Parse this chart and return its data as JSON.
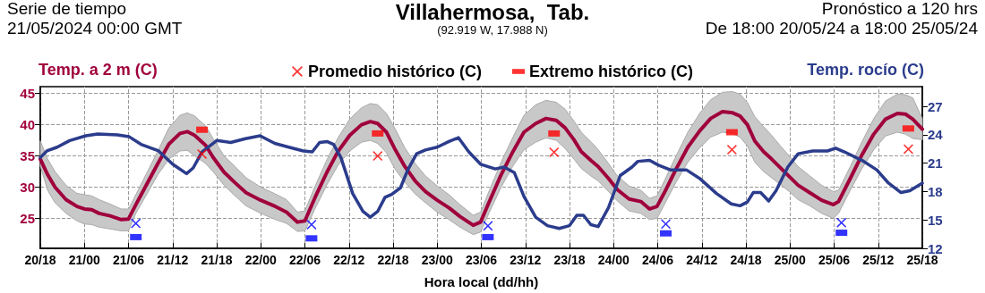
{
  "chart_data": {
    "type": "line",
    "title": "Villahermosa,  Tab.",
    "subtitle": "(92.919 W, 17.988 N)",
    "annotations": [
      "Serie de tiempo",
      "21/05/2024 00:00 GMT",
      "Pronóstico a 120 hrs",
      "De 18:00 20/05/24 a 18:00 25/05/24"
    ],
    "xlabel": "Hora local (dd/hh)",
    "ylabel": "Temp. a 2 m (C)",
    "y2label": "Temp. rocío (C)",
    "xlim": [
      "2024-05-20T18:00",
      "2024-05-25T18:00"
    ],
    "xticks": [
      {
        "value": "2024-05-20T18:00",
        "label": "20/18"
      },
      {
        "value": "2024-05-21T00:00",
        "label": "21/00"
      },
      {
        "value": "2024-05-21T06:00",
        "label": "21/06"
      },
      {
        "value": "2024-05-21T12:00",
        "label": "21/12"
      },
      {
        "value": "2024-05-21T18:00",
        "label": "21/18"
      },
      {
        "value": "2024-05-22T00:00",
        "label": "22/00"
      },
      {
        "value": "2024-05-22T06:00",
        "label": "22/06"
      },
      {
        "value": "2024-05-22T12:00",
        "label": "22/12"
      },
      {
        "value": "2024-05-22T18:00",
        "label": "22/18"
      },
      {
        "value": "2024-05-23T00:00",
        "label": "23/00"
      },
      {
        "value": "2024-05-23T06:00",
        "label": "23/06"
      },
      {
        "value": "2024-05-23T12:00",
        "label": "23/12"
      },
      {
        "value": "2024-05-23T18:00",
        "label": "23/18"
      },
      {
        "value": "2024-05-24T00:00",
        "label": "24/00"
      },
      {
        "value": "2024-05-24T06:00",
        "label": "24/06"
      },
      {
        "value": "2024-05-24T12:00",
        "label": "24/12"
      },
      {
        "value": "2024-05-24T18:00",
        "label": "24/18"
      },
      {
        "value": "2024-05-25T00:00",
        "label": "25/00"
      },
      {
        "value": "2024-05-25T06:00",
        "label": "25/06"
      },
      {
        "value": "2024-05-25T12:00",
        "label": "25/12"
      },
      {
        "value": "2024-05-25T18:00",
        "label": "25/18"
      }
    ],
    "ylim": [
      20.2,
      46.1
    ],
    "yticks": [
      25,
      30,
      35,
      40,
      45
    ],
    "y2lim": [
      12,
      29.1
    ],
    "y2ticks": [
      12,
      15,
      18,
      21,
      24,
      27
    ],
    "grid": true,
    "legend": "top",
    "series": [
      {
        "color": "#a0003c",
        "marker": "none",
        "line_style": "solid",
        "x": [
          "2024-05-20T18:00",
          "2024-05-20T19:00",
          "2024-05-20T20:00",
          "2024-05-20T21:30",
          "2024-05-20T23:00",
          "2024-05-21T00:00",
          "2024-05-21T01:00",
          "2024-05-21T02:00",
          "2024-05-21T03:30",
          "2024-05-21T05:00",
          "2024-05-21T06:00",
          "2024-05-21T07:00",
          "2024-05-21T08:30",
          "2024-05-21T10:00",
          "2024-05-21T11:30",
          "2024-05-21T13:00",
          "2024-05-21T14:00",
          "2024-05-21T15:00",
          "2024-05-21T16:30",
          "2024-05-21T17:30",
          "2024-05-21T19:00",
          "2024-05-21T20:30",
          "2024-05-21T22:00",
          "2024-05-22T00:00",
          "2024-05-22T02:00",
          "2024-05-22T03:30",
          "2024-05-22T05:00",
          "2024-05-22T06:00",
          "2024-05-22T07:24",
          "2024-05-22T09:00",
          "2024-05-22T10:30",
          "2024-05-22T12:06",
          "2024-05-22T13:42",
          "2024-05-22T14:54",
          "2024-05-22T15:54",
          "2024-05-22T17:06",
          "2024-05-22T18:12",
          "2024-05-22T19:36",
          "2024-05-22T21:00",
          "2024-05-22T22:24",
          "2024-05-23T00:00",
          "2024-05-23T01:36",
          "2024-05-23T03:06",
          "2024-05-23T04:54",
          "2024-05-23T05:54",
          "2024-05-23T07:06",
          "2024-05-23T08:42",
          "2024-05-23T10:18",
          "2024-05-23T11:48",
          "2024-05-23T13:24",
          "2024-05-23T14:48",
          "2024-05-23T16:12",
          "2024-05-23T17:24",
          "2024-05-23T18:36",
          "2024-05-23T19:36",
          "2024-05-23T20:54",
          "2024-05-23T21:54",
          "2024-05-23T23:18",
          "2024-05-24T00:30",
          "2024-05-24T02:06",
          "2024-05-24T03:42",
          "2024-05-24T04:54",
          "2024-05-24T05:54",
          "2024-05-24T06:54",
          "2024-05-24T08:30",
          "2024-05-24T10:06",
          "2024-05-24T11:42",
          "2024-05-24T13:12",
          "2024-05-24T14:48",
          "2024-05-24T16:12",
          "2024-05-24T17:12",
          "2024-05-24T18:12",
          "2024-05-24T19:12",
          "2024-05-24T20:24",
          "2024-05-24T21:30",
          "2024-05-24T22:42",
          "2024-05-24T23:54",
          "2024-05-25T01:06",
          "2024-05-25T02:42",
          "2024-05-25T04:18",
          "2024-05-25T05:54",
          "2024-05-25T06:36",
          "2024-05-25T08:12",
          "2024-05-25T09:48",
          "2024-05-25T11:24",
          "2024-05-25T13:00",
          "2024-05-25T14:36",
          "2024-05-25T15:42",
          "2024-05-25T16:42",
          "2024-05-25T18:00"
        ],
        "values": [
          34.5,
          32,
          30,
          28,
          26.9,
          26.5,
          26.4,
          25.8,
          25.4,
          24.8,
          24.9,
          27.2,
          30.5,
          33.8,
          36.9,
          38.6,
          38.9,
          38.3,
          36.7,
          34.8,
          32.4,
          30.7,
          29.1,
          27.9,
          26.9,
          26,
          24.4,
          24.6,
          28.4,
          32.4,
          35.7,
          38.3,
          40,
          40.5,
          40.2,
          38.8,
          36.2,
          33.3,
          31,
          29.3,
          27.9,
          26.7,
          25.3,
          23.9,
          24.4,
          27.7,
          32,
          35.7,
          38.8,
          40.2,
          41,
          40.7,
          39.5,
          37.6,
          35.7,
          34.3,
          33.3,
          31.4,
          29.6,
          28.1,
          27.7,
          26.5,
          26.9,
          29.1,
          32.9,
          36.4,
          39,
          41,
          42.1,
          41.9,
          41.4,
          40,
          37.4,
          35.7,
          34.5,
          33.1,
          31.7,
          30.3,
          29.1,
          27.9,
          27.2,
          27.7,
          31.4,
          35.2,
          38.5,
          40.9,
          41.8,
          41.7,
          40.9,
          39.3
        ],
        "upper": [
          37.4,
          34.5,
          32.5,
          30.3,
          29.0,
          28.8,
          28.6,
          28.0,
          27.3,
          26.5,
          26.5,
          28.8,
          32.3,
          35.8,
          39.5,
          41.5,
          41.9,
          41.4,
          39.8,
          37.8,
          35.0,
          33.3,
          31.5,
          30.0,
          28.9,
          28.0,
          26.0,
          26.2,
          30.2,
          34.4,
          37.9,
          40.9,
          42.7,
          43.4,
          43.2,
          41.8,
          39.5,
          36.3,
          33.8,
          31.8,
          30.2,
          28.8,
          27.2,
          25.5,
          26.0,
          29.5,
          34.0,
          38.0,
          41.5,
          43.2,
          43.9,
          43.6,
          42.5,
          40.6,
          38.8,
          37.3,
          36.0,
          33.8,
          31.8,
          30.2,
          29.5,
          28.2,
          28.6,
          31.0,
          35.0,
          38.8,
          41.8,
          44.0,
          45.2,
          45.3,
          44.9,
          43.6,
          41.3,
          39.7,
          38.3,
          36.6,
          35.0,
          33.3,
          31.8,
          30.3,
          29.3,
          29.5,
          33.3,
          37.3,
          41.0,
          43.8,
          44.9,
          44.8,
          44.3,
          41.0
        ],
        "lower": [
          33.4,
          29.5,
          27.5,
          25.8,
          24.6,
          24.1,
          24.0,
          23.6,
          23.3,
          23.0,
          23.0,
          25.8,
          28.9,
          32.0,
          34.5,
          35.8,
          35.9,
          35.0,
          33.8,
          32.5,
          30.3,
          28.6,
          27.0,
          25.8,
          24.8,
          24.2,
          22.9,
          23.0,
          26.6,
          30.4,
          33.5,
          35.8,
          37.2,
          37.5,
          37.0,
          35.5,
          33.0,
          30.8,
          28.9,
          27.5,
          26.0,
          24.8,
          23.6,
          22.4,
          22.8,
          26.0,
          30.0,
          33.4,
          36.0,
          37.2,
          37.9,
          37.5,
          36.2,
          34.5,
          33.0,
          31.8,
          31.0,
          29.3,
          27.8,
          26.2,
          25.8,
          24.8,
          25.0,
          27.2,
          30.8,
          34.0,
          36.3,
          38.0,
          38.8,
          38.6,
          38.0,
          36.6,
          34.0,
          32.5,
          31.5,
          30.4,
          29.3,
          28.0,
          27.0,
          25.8,
          25.0,
          25.8,
          29.5,
          33.0,
          36.0,
          38.2,
          38.8,
          38.5,
          37.8,
          37.6
        ]
      },
      {
        "axis": "y2",
        "color": "#2b3c8c",
        "marker": "none",
        "line_style": "solid",
        "x": [
          "2024-05-20T18:00",
          "2024-05-20T18:54",
          "2024-05-20T20:18",
          "2024-05-20T22:00",
          "2024-05-21T00:12",
          "2024-05-21T01:48",
          "2024-05-21T04:30",
          "2024-05-21T06:06",
          "2024-05-21T07:42",
          "2024-05-21T10:06",
          "2024-05-21T12:00",
          "2024-05-21T13:54",
          "2024-05-21T14:48",
          "2024-05-21T16:00",
          "2024-05-21T18:00",
          "2024-05-21T19:54",
          "2024-05-21T21:54",
          "2024-05-21T23:54",
          "2024-05-22T01:54",
          "2024-05-22T03:48",
          "2024-05-22T05:48",
          "2024-05-22T07:00",
          "2024-05-22T08:00",
          "2024-05-22T09:00",
          "2024-05-22T09:54",
          "2024-05-22T10:54",
          "2024-05-22T12:30",
          "2024-05-22T13:54",
          "2024-05-22T14:54",
          "2024-05-22T15:54",
          "2024-05-22T16:54",
          "2024-05-22T17:48",
          "2024-05-22T19:00",
          "2024-05-22T20:00",
          "2024-05-22T21:12",
          "2024-05-22T22:24",
          "2024-05-23T00:00",
          "2024-05-23T01:36",
          "2024-05-23T02:54",
          "2024-05-23T04:18",
          "2024-05-23T05:54",
          "2024-05-23T07:54",
          "2024-05-23T09:06",
          "2024-05-23T10:30",
          "2024-05-23T11:48",
          "2024-05-23T13:24",
          "2024-05-23T15:00",
          "2024-05-23T16:36",
          "2024-05-23T18:00",
          "2024-05-23T19:00",
          "2024-05-23T19:54",
          "2024-05-23T20:54",
          "2024-05-23T21:54",
          "2024-05-23T23:18",
          "2024-05-24T00:54",
          "2024-05-24T02:30",
          "2024-05-24T03:18",
          "2024-05-24T04:54",
          "2024-05-24T06:06",
          "2024-05-24T07:42",
          "2024-05-24T09:54",
          "2024-05-24T11:42",
          "2024-05-24T14:00",
          "2024-05-24T16:00",
          "2024-05-24T17:12",
          "2024-05-24T18:12",
          "2024-05-24T19:00",
          "2024-05-24T20:00",
          "2024-05-24T21:06",
          "2024-05-24T22:06",
          "2024-05-24T23:42",
          "2024-05-25T01:06",
          "2024-05-25T03:06",
          "2024-05-25T05:06",
          "2024-05-25T06:12",
          "2024-05-25T07:24",
          "2024-05-25T09:48",
          "2024-05-25T11:48",
          "2024-05-25T13:24",
          "2024-05-25T15:06",
          "2024-05-25T16:18",
          "2024-05-25T18:00"
        ],
        "values": [
          21.6,
          22.3,
          22.7,
          23.4,
          23.9,
          24.1,
          24,
          23.8,
          23,
          22.3,
          20.9,
          19.9,
          20.5,
          22.2,
          23.4,
          23.2,
          23.6,
          23.9,
          23.1,
          22.7,
          22.3,
          22.2,
          23.2,
          23.3,
          23,
          21.6,
          17.8,
          15.9,
          15.3,
          15.9,
          17.4,
          17.7,
          18.4,
          20.3,
          22,
          22.4,
          22.7,
          23.3,
          23.7,
          22.2,
          20.9,
          20.4,
          20.6,
          20,
          17.5,
          15.3,
          14.4,
          14.1,
          14.4,
          15.5,
          15.5,
          14.5,
          14.3,
          16.3,
          19.7,
          20.6,
          21.2,
          21.3,
          20.8,
          20.3,
          20.3,
          19.4,
          17.8,
          16.7,
          16.5,
          16.9,
          17.9,
          17.9,
          17,
          18.1,
          20.6,
          22,
          22.3,
          22.3,
          22.6,
          22.2,
          21.3,
          20.3,
          18.9,
          17.9,
          18.1,
          18.9
        ]
      },
      {
        "type": "scatter",
        "name": "Promedio histórico (C)",
        "color": "#ff0000",
        "marker": "cross",
        "x": [
          "2024-05-21T07:00",
          "2024-05-21T16:00",
          "2024-05-22T06:54",
          "2024-05-22T15:54",
          "2024-05-23T06:54",
          "2024-05-23T15:54",
          "2024-05-24T07:06",
          "2024-05-24T16:06",
          "2024-05-25T07:00",
          "2024-05-25T16:06"
        ],
        "values": [
          24.2,
          35.3,
          24,
          35,
          23.8,
          35.6,
          24.1,
          36,
          24.3,
          36.1
        ],
        "colors": [
          "#0000ff",
          "#ff0000",
          "#0000ff",
          "#ff0000",
          "#0000ff",
          "#ff0000",
          "#0000ff",
          "#ff0000",
          "#0000ff",
          "#ff0000"
        ]
      },
      {
        "type": "scatter",
        "name": "Extremo histórico (C)",
        "color": "#ff0000",
        "marker": "square",
        "x": [
          "2024-05-21T07:00",
          "2024-05-21T16:00",
          "2024-05-22T06:54",
          "2024-05-22T15:54",
          "2024-05-23T06:54",
          "2024-05-23T15:54",
          "2024-05-24T07:06",
          "2024-05-24T16:06",
          "2024-05-25T07:00",
          "2024-05-25T16:06"
        ],
        "values": [
          22,
          39.2,
          21.8,
          38.6,
          22,
          38.6,
          22.6,
          38.8,
          22.7,
          39.4
        ],
        "colors": [
          "#0000ff",
          "#ff0000",
          "#0000ff",
          "#ff0000",
          "#0000ff",
          "#ff0000",
          "#0000ff",
          "#ff0000",
          "#0000ff",
          "#ff0000"
        ]
      }
    ]
  }
}
